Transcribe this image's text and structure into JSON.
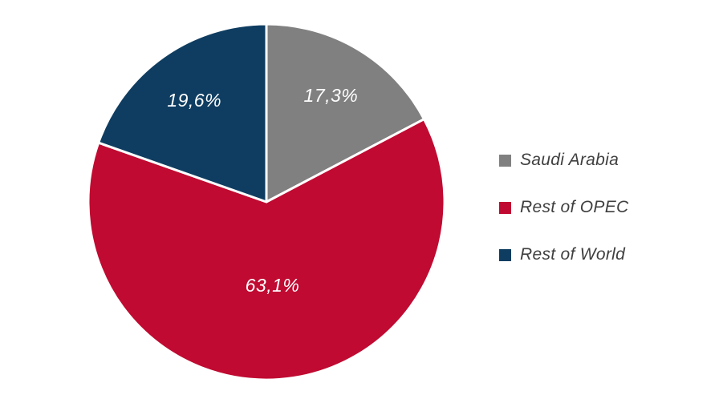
{
  "chart_data": {
    "type": "pie",
    "title": "",
    "start_angle_deg": 0,
    "direction": "clockwise",
    "legend_position": "right",
    "background_color": "#FFFFFF",
    "slice_label_color": "#FFFFFF",
    "legend_text_color": "#3F3F3F",
    "separator_color": "#FFFFFF",
    "slices": [
      {
        "label": "Saudi Arabia",
        "value": 17.3,
        "display": "17,3%",
        "color": "#808080"
      },
      {
        "label": "Rest of OPEC",
        "value": 63.1,
        "display": "63,1%",
        "color": "#C00A31"
      },
      {
        "label": "Rest of World",
        "value": 19.6,
        "display": "19,6%",
        "color": "#0F3D61"
      }
    ]
  }
}
